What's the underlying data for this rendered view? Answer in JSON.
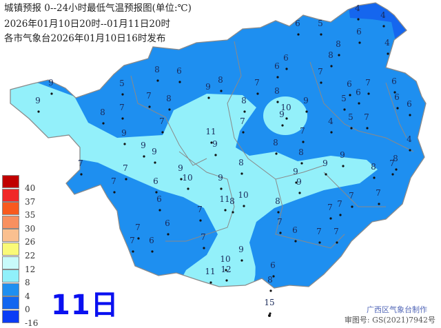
{
  "header": {
    "title": "城镇预报 0--24小时最低气温预报图(单位:℃)",
    "period": "2026年01月10日20时--01月11日20时",
    "issued": "各市气象台2026年01月10日16时发布"
  },
  "map": {
    "colors": {
      "base_blue": "#1e8ff0",
      "light_cyan": "#93f0fa",
      "dark_blue": "#1566ee",
      "border": "#8a8a8a"
    },
    "day_label": "11日",
    "station_values": [
      4,
      4,
      6,
      4,
      6,
      5,
      8,
      8,
      6,
      6,
      7,
      7,
      8,
      6,
      7,
      6,
      5,
      5,
      7,
      4,
      6,
      6,
      6,
      4,
      9,
      10,
      9,
      8,
      7,
      7,
      8,
      8,
      8,
      9,
      9,
      8,
      7,
      8,
      9,
      9,
      9,
      5,
      8,
      6,
      7,
      8,
      8,
      7,
      7,
      9,
      9,
      9,
      11,
      9,
      7,
      7,
      7,
      6,
      9,
      10,
      9,
      9,
      8,
      6,
      7,
      6,
      7,
      7,
      6,
      7,
      11,
      8,
      10,
      8,
      7,
      6,
      7,
      7,
      7,
      7,
      7,
      7,
      9,
      10,
      12,
      11,
      6,
      8,
      15,
      9
    ]
  },
  "legend": {
    "colors": [
      "#c00000",
      "#f02828",
      "#f85a1e",
      "#f89060",
      "#fac090",
      "#fafa78",
      "#c8fafa",
      "#90f0fa",
      "#1e8ff0",
      "#1266f0",
      "#0a3cf5"
    ],
    "labels": [
      "40",
      "37",
      "35",
      "30",
      "26",
      "22",
      "12",
      "8",
      "4",
      "0",
      "-16"
    ]
  },
  "footer": {
    "producer": "广西区气象台制作",
    "approval": "审图号: GS(2021)7942号"
  }
}
